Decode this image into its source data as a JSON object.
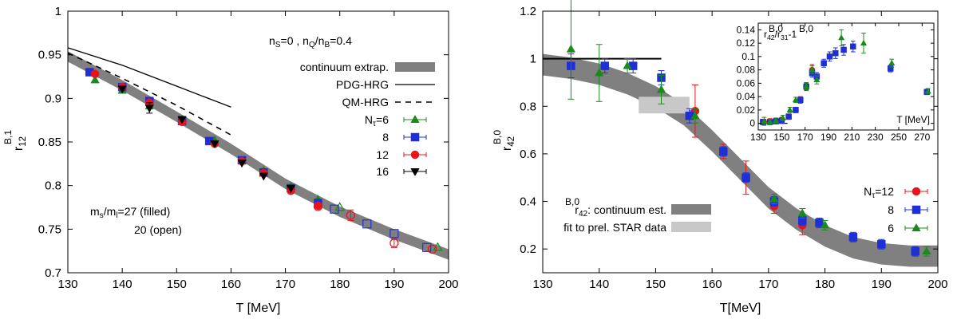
{
  "colors": {
    "green": "#1a8a1a",
    "blue": "#1f2fd8",
    "red": "#e8141a",
    "black": "#000000",
    "band": "#808080",
    "band_light": "#c8c8c8"
  },
  "chart_data": [
    {
      "type": "scatter",
      "xlim": [
        130,
        200
      ],
      "ylim": [
        0.7,
        1.0
      ],
      "xticks": [
        130,
        140,
        150,
        160,
        170,
        180,
        190,
        200
      ],
      "yticks": [
        0.7,
        0.75,
        0.8,
        0.85,
        0.9,
        0.95,
        1.0
      ],
      "xtick_labels": [
        "130",
        "140",
        "150",
        "160",
        "170",
        "180",
        "190",
        "200"
      ],
      "ytick_labels": [
        "0.7",
        "0.75",
        "0.8",
        "0.85",
        "0.9",
        "0.95",
        "1"
      ],
      "xlabel": "T [MeV]",
      "ylabel": {
        "base": "r",
        "sup": "B,1",
        "sub": "12"
      },
      "legend_header": {
        "n1": "n",
        "n1_sub": "S",
        "t1": "=0 , n",
        "n1b_sub": "Q",
        "t2": "/n",
        "n2_sub": "B",
        "t3": "=0.4"
      },
      "legend_position": "top-right",
      "legend_labels": {
        "band": "continuum extrap.",
        "pdg": "PDG-HRG",
        "qm": "QM-HRG",
        "nt_prefix": "N",
        "nt_sub": "τ",
        "nt6": "=6",
        "nt8": "8",
        "nt12": "12",
        "nt16": "16"
      },
      "annotation": {
        "l1a": "m",
        "l1a_sub": "s",
        "l1b": "/m",
        "l1b_sub": "l",
        "l1c": "=27 (filled)",
        "l2": "20 (open)"
      },
      "continuum_band": {
        "x": [
          130,
          140,
          150,
          160,
          170,
          180,
          190,
          200
        ],
        "y": [
          0.948,
          0.915,
          0.879,
          0.842,
          0.802,
          0.77,
          0.744,
          0.721
        ],
        "width": 0.006
      },
      "pdg_hrg": {
        "x": [
          130,
          140,
          150,
          160
        ],
        "y": [
          0.958,
          0.938,
          0.914,
          0.89
        ]
      },
      "qm_hrg": {
        "x": [
          130,
          140,
          150,
          160
        ],
        "y": [
          0.952,
          0.923,
          0.892,
          0.858
        ]
      },
      "series": [
        {
          "name": "6",
          "marker": "triangle",
          "color": "green",
          "x": [
            135,
            140,
            145,
            151,
            157,
            162,
            166,
            171,
            176
          ],
          "y": [
            0.921,
            0.909,
            0.891,
            0.876,
            0.852,
            0.829,
            0.817,
            0.799,
            0.784
          ],
          "err": [
            0,
            0,
            0,
            0,
            0,
            0,
            0,
            0,
            0
          ]
        },
        {
          "name": "8",
          "marker": "square",
          "color": "blue",
          "x": [
            134,
            140,
            145,
            151,
            156,
            162,
            166,
            171,
            176
          ],
          "y": [
            0.93,
            0.913,
            0.897,
            0.874,
            0.851,
            0.829,
            0.815,
            0.797,
            0.78
          ],
          "err": [
            0,
            0,
            0,
            0,
            0,
            0,
            0,
            0,
            0
          ]
        },
        {
          "name": "12",
          "marker": "circle",
          "color": "red",
          "x": [
            135,
            140,
            145,
            151,
            157,
            162,
            166,
            171,
            176
          ],
          "y": [
            0.928,
            0.913,
            0.895,
            0.873,
            0.848,
            0.828,
            0.814,
            0.794,
            0.777
          ],
          "err": [
            0,
            0,
            0,
            0,
            0,
            0,
            0,
            0,
            0
          ]
        },
        {
          "name": "16",
          "marker": "triangle_down",
          "color": "black",
          "x": [
            140,
            145,
            151,
            157,
            162,
            166,
            171
          ],
          "y": [
            0.911,
            0.889,
            0.876,
            0.848,
            0.826,
            0.811,
            0.797
          ],
          "err": [
            0,
            0.006,
            0,
            0,
            0,
            0,
            0
          ]
        },
        {
          "name": "6-open",
          "marker": "triangle",
          "color": "green",
          "open": true,
          "x": [
            180,
            198
          ],
          "y": [
            0.775,
            0.729
          ],
          "err": [
            0,
            0
          ]
        },
        {
          "name": "8-open",
          "marker": "square",
          "color": "blue",
          "open": true,
          "x": [
            179,
            185,
            190,
            196
          ],
          "y": [
            0.773,
            0.756,
            0.745,
            0.729
          ],
          "err": [
            0,
            0,
            0,
            0
          ]
        },
        {
          "name": "12-open",
          "marker": "circle",
          "color": "red",
          "open": true,
          "x": [
            176,
            182,
            190,
            197
          ],
          "y": [
            0.776,
            0.766,
            0.734,
            0.727
          ],
          "err": [
            0,
            0.006,
            0.005,
            0
          ]
        }
      ]
    },
    {
      "type": "scatter",
      "xlim": [
        130,
        200
      ],
      "ylim": [
        0.1,
        1.2
      ],
      "xticks": [
        130,
        140,
        150,
        160,
        170,
        180,
        190,
        200
      ],
      "yticks": [
        0.2,
        0.4,
        0.6,
        0.8,
        1.0,
        1.2
      ],
      "xtick_labels": [
        "130",
        "140",
        "150",
        "160",
        "170",
        "180",
        "190",
        "200"
      ],
      "ytick_labels": [
        "0.2",
        "0.4",
        "0.6",
        "0.8",
        "1",
        "1.2"
      ],
      "xlabel": "T[MeV]",
      "ylabel": {
        "base": "r",
        "sup": "B,0",
        "sub": "42"
      },
      "legend_position": "bottom-right",
      "legend_labels": {
        "nt_prefix": "N",
        "nt_sub": "τ",
        "nt12": "=12",
        "nt8": "8",
        "nt6": "6"
      },
      "band_legend": {
        "cont_base": "r",
        "cont_sup": "B,0",
        "cont_sub": "42",
        "cont_text": ": continuum est.",
        "star": "fit to prel. STAR data"
      },
      "continuum_band": {
        "x": [
          130,
          135,
          140,
          145,
          150,
          155,
          160,
          165,
          170,
          175,
          180,
          185,
          190,
          195,
          200
        ],
        "y": [
          0.975,
          0.96,
          0.935,
          0.895,
          0.84,
          0.765,
          0.655,
          0.535,
          0.415,
          0.325,
          0.255,
          0.205,
          0.18,
          0.17,
          0.17
        ],
        "width": 0.045
      },
      "star_box": {
        "x": [
          147,
          156
        ],
        "y": [
          0.77,
          0.84
        ]
      },
      "hrg_line": {
        "x": [
          130,
          151
        ],
        "y": [
          1.0,
          1.0
        ]
      },
      "series": [
        {
          "name": "12",
          "marker": "circle",
          "color": "red",
          "x": [
            157,
            162,
            166,
            171,
            176
          ],
          "y": [
            0.78,
            0.61,
            0.5,
            0.38,
            0.3
          ],
          "err": [
            0.11,
            0.03,
            0.07,
            0.03,
            0.04
          ]
        },
        {
          "name": "8",
          "marker": "square",
          "color": "blue",
          "x": [
            135,
            141,
            146,
            151,
            156,
            162,
            166,
            171,
            176,
            179,
            185,
            190,
            196
          ],
          "y": [
            0.97,
            0.97,
            0.97,
            0.92,
            0.76,
            0.61,
            0.5,
            0.4,
            0.32,
            0.31,
            0.25,
            0.22,
            0.19
          ],
          "err": [
            0.05,
            0.03,
            0.03,
            0.03,
            0.03,
            0.02,
            0.02,
            0.02,
            0.02,
            0.02,
            0.02,
            0.02,
            0.02
          ]
        },
        {
          "name": "6",
          "marker": "triangle",
          "color": "green",
          "x": [
            135,
            140,
            145,
            151,
            157,
            171,
            176,
            180,
            198
          ],
          "y": [
            1.04,
            0.94,
            0.97,
            0.87,
            0.76,
            0.41,
            0.35,
            0.3,
            0.19
          ],
          "err": [
            0.21,
            0.12,
            0.03,
            0.06,
            0.03,
            0.02,
            0.02,
            0.02,
            0.02
          ]
        }
      ],
      "inset": {
        "xlim": [
          130,
          280
        ],
        "ylim": [
          -0.01,
          0.15
        ],
        "xticks": [
          130,
          150,
          170,
          190,
          210,
          230,
          250,
          270
        ],
        "yticks": [
          0,
          0.02,
          0.04,
          0.06,
          0.08,
          0.1,
          0.12,
          0.14
        ],
        "xtick_labels": [
          "130",
          "150",
          "170",
          "190",
          "210",
          "230",
          "250",
          "270"
        ],
        "ytick_labels": [
          "0",
          "0.02",
          "0.04",
          "0.06",
          "0.08",
          "0.1",
          "0.12",
          "0.14"
        ],
        "xlabel": "T [MeV]",
        "ylabel": {
          "a": "r",
          "a_sup": "B,0",
          "a_sub": "42",
          "b": "/r",
          "b_sup": "B,0",
          "b_sub": "31",
          "c": "-1"
        },
        "hline": {
          "x": [
            130,
            155
          ],
          "y": [
            0,
            0
          ]
        },
        "series": [
          {
            "name": "12",
            "marker": "circle",
            "color": "red",
            "x": [
              135,
              140,
              145,
              150,
              156,
              162,
              166,
              171,
              176
            ],
            "y": [
              0.002,
              0.003,
              0.003,
              0.005,
              0.01,
              0.02,
              0.035,
              0.055,
              0.08
            ],
            "err": [
              0.004,
              0.004,
              0.004,
              0.004,
              0.004,
              0.004,
              0.005,
              0.006,
              0.008
            ]
          },
          {
            "name": "8",
            "marker": "square",
            "color": "blue",
            "x": [
              134,
              140,
              145,
              150,
              156,
              162,
              166,
              171,
              176,
              180,
              186,
              191,
              196,
              203,
              211,
              243,
              274
            ],
            "y": [
              0.002,
              0.002,
              0.003,
              0.004,
              0.01,
              0.02,
              0.035,
              0.055,
              0.075,
              0.07,
              0.09,
              0.1,
              0.105,
              0.11,
              0.115,
              0.082,
              0.047
            ],
            "err": [
              0.004,
              0.004,
              0.004,
              0.004,
              0.004,
              0.004,
              0.004,
              0.005,
              0.006,
              0.006,
              0.006,
              0.007,
              0.008,
              0.008,
              0.008,
              0.005,
              0.004
            ]
          },
          {
            "name": "6",
            "marker": "triangle",
            "color": "green",
            "x": [
              135,
              140,
              145,
              151,
              157,
              162,
              171,
              176,
              180,
              201,
              220,
              244,
              275
            ],
            "y": [
              0.003,
              0.002,
              0.004,
              0.008,
              0.02,
              0.035,
              0.055,
              0.08,
              0.065,
              0.128,
              0.12,
              0.09,
              0.048
            ],
            "err": [
              0.006,
              0.004,
              0.004,
              0.004,
              0.004,
              0.004,
              0.005,
              0.006,
              0.006,
              0.012,
              0.015,
              0.006,
              0.004
            ]
          }
        ]
      }
    }
  ]
}
